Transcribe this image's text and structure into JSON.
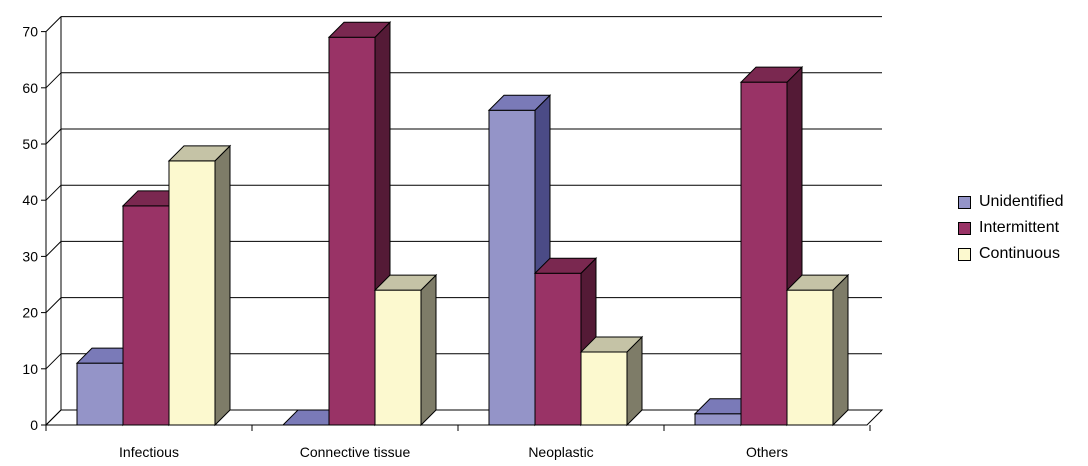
{
  "chart_data": {
    "type": "bar",
    "categories": [
      "Infectious",
      "Connective tissue",
      "Neoplastic",
      "Others"
    ],
    "series": [
      {
        "name": "Unidentified",
        "color": "#9494c8",
        "side_color": "#4b4b86",
        "top_color": "#7a7ab8",
        "values": [
          11,
          0,
          56,
          2
        ]
      },
      {
        "name": "Intermittent",
        "color": "#993366",
        "side_color": "#541a36",
        "top_color": "#7a2850",
        "values": [
          39,
          69,
          27,
          61
        ]
      },
      {
        "name": "Continuous",
        "color": "#fcf9cf",
        "side_color": "#7e7c68",
        "top_color": "#c5c3a6",
        "values": [
          47,
          24,
          13,
          24
        ]
      }
    ],
    "y_ticks": [
      "0",
      "10",
      "20",
      "30",
      "40",
      "50",
      "60",
      "70"
    ],
    "ylim": [
      0,
      70
    ],
    "grid": true,
    "legend_position": "right",
    "style": "3d-clustered-column"
  }
}
